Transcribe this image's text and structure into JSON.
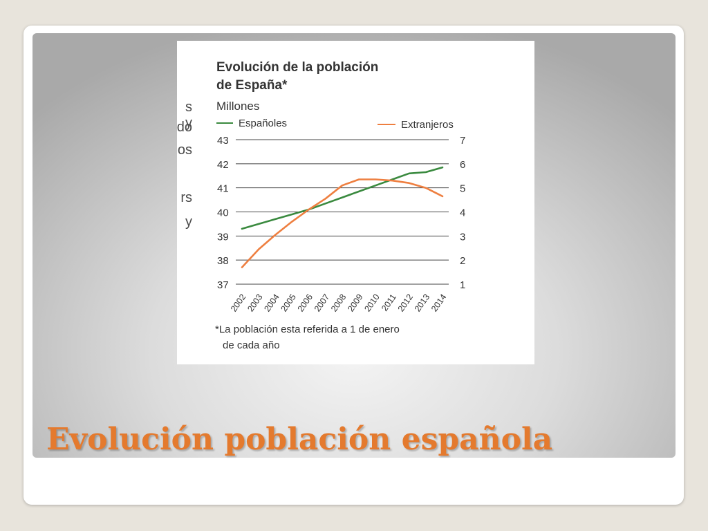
{
  "slide": {
    "title": "Evolución población española",
    "background_text": [
      "s y",
      "do",
      "os",
      "rs",
      "y"
    ]
  },
  "colors": {
    "title": "#e47a2e",
    "espanoles": "#3a8a3f",
    "extranjeros": "#ee7f40"
  },
  "chart_data": {
    "type": "line",
    "title": "Evolución de la población de España*",
    "title_lines": [
      "Evolución de la población",
      "de España*"
    ],
    "unit_label": "Millones",
    "footnote_lines": [
      "*La población esta referida a 1 de enero",
      "de cada año"
    ],
    "x": [
      "2002",
      "2003",
      "2004",
      "2005",
      "2006",
      "2007",
      "2008",
      "2009",
      "2010",
      "2011",
      "2012",
      "2013",
      "2014"
    ],
    "y_left_ticks": [
      "43",
      "42",
      "41",
      "40",
      "39",
      "38",
      "37"
    ],
    "y_right_ticks": [
      "7",
      "6",
      "5",
      "4",
      "3",
      "2",
      "1"
    ],
    "ylim_left": [
      37,
      43
    ],
    "ylim_right": [
      1,
      7
    ],
    "grid": true,
    "series": [
      {
        "name": "Españoles",
        "axis": "left",
        "values": [
          39.3,
          39.5,
          39.7,
          39.9,
          40.1,
          40.35,
          40.6,
          40.85,
          41.1,
          41.35,
          41.6,
          41.65,
          41.85
        ]
      },
      {
        "name": "Extranjeros",
        "axis": "right",
        "values": [
          1.7,
          2.45,
          3.05,
          3.6,
          4.1,
          4.55,
          5.1,
          5.35,
          5.35,
          5.3,
          5.2,
          5.0,
          4.65
        ]
      }
    ]
  }
}
